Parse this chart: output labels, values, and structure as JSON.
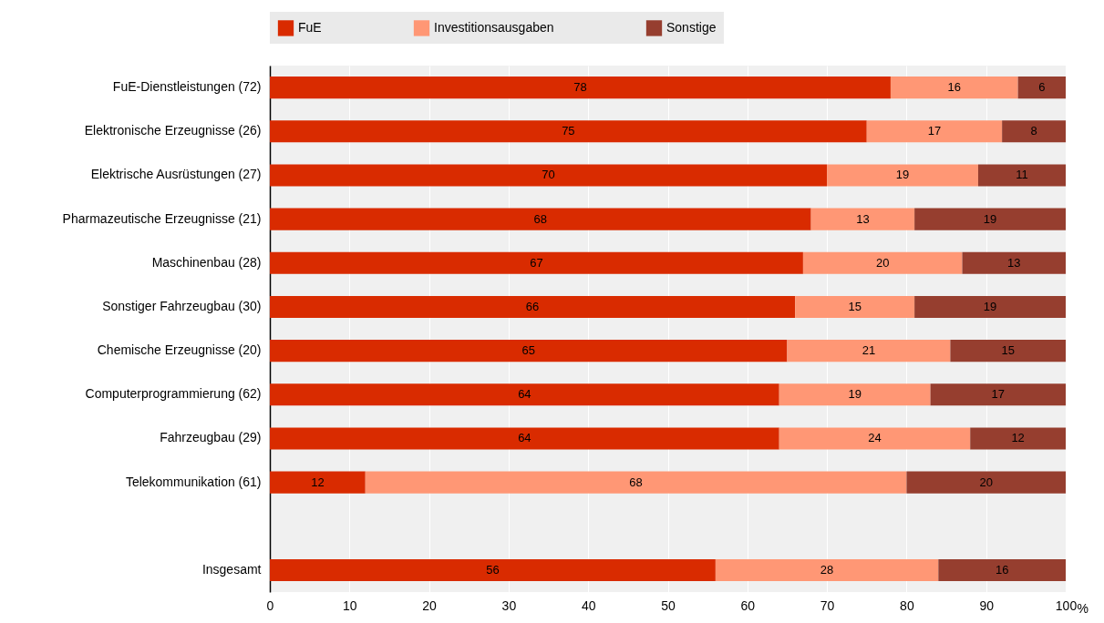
{
  "chart_data": {
    "type": "bar",
    "orientation": "horizontal",
    "stacked": true,
    "grid": "x",
    "legend": "top",
    "xlabel": "%",
    "categories": [
      "FuE-Dienstleistungen (72)",
      "Elektronische Erzeugnisse (26)",
      "Elektrische Ausrüstungen (27)",
      "Pharmazeutische Erzeugnisse (21)",
      "Maschinenbau (28)",
      "Sonstiger Fahrzeugbau (30)",
      "Chemische Erzeugnisse (20)",
      "Computerprogrammierung (62)",
      "Fahrzeugbau (29)",
      "Telekommunikation (61)",
      null,
      "Insgesamt"
    ],
    "series": [
      {
        "name": "FuE",
        "color": "#d92b00",
        "values": [
          78,
          75,
          70,
          68,
          67,
          66,
          65,
          64,
          64,
          12,
          null,
          56
        ],
        "value_labels": [
          "78",
          "75",
          "70",
          "68",
          "67",
          "66",
          "65",
          "64",
          "64",
          "12",
          null,
          "56"
        ]
      },
      {
        "name": "Investitionsausgaben",
        "color": "#ff9775",
        "values": [
          16,
          17,
          19,
          13,
          20,
          15,
          20.5,
          19,
          24,
          68,
          null,
          28
        ],
        "value_labels": [
          "16",
          "17",
          "19",
          "13",
          "20",
          "15",
          "21",
          "19",
          "24",
          "68",
          null,
          "28"
        ]
      },
      {
        "name": "Sonstige",
        "color": "#963e2f",
        "values": [
          6,
          8,
          11,
          19,
          13,
          19,
          14.5,
          17,
          12,
          20,
          null,
          16
        ],
        "value_labels": [
          "6",
          "8",
          "11",
          "19",
          "13",
          "19",
          "15",
          "17",
          "12",
          "20",
          null,
          "16"
        ]
      }
    ],
    "xlim": [
      0,
      100
    ],
    "xticks": [
      0,
      10,
      20,
      30,
      40,
      50,
      60,
      70,
      80,
      90,
      100
    ]
  }
}
